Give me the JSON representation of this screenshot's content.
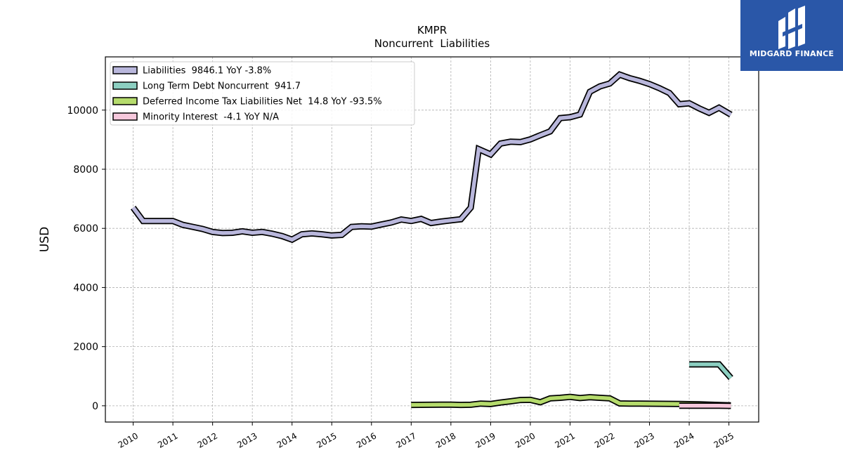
{
  "chart_data": {
    "type": "line",
    "title": "KMPR",
    "subtitle": "Noncurrent  Liabilities",
    "ylabel": "USD",
    "xlabel": "",
    "ylim": [
      -550,
      11800
    ],
    "xlim": [
      2009.3,
      2025.75
    ],
    "yticks": [
      0,
      2000,
      4000,
      6000,
      8000,
      10000
    ],
    "xticks": [
      "2010",
      "2011",
      "2012",
      "2013",
      "2014",
      "2015",
      "2016",
      "2017",
      "2018",
      "2019",
      "2020",
      "2021",
      "2022",
      "2023",
      "2024",
      "2025"
    ],
    "grid": true,
    "legend_position": "top-left",
    "series": [
      {
        "name": "Liabilities",
        "legend": "Liabilities  9846.1 YoY -3.8%",
        "color": "#b9b7dc",
        "points": [
          [
            2010.0,
            6700
          ],
          [
            2010.25,
            6250
          ],
          [
            2010.5,
            6250
          ],
          [
            2010.75,
            6250
          ],
          [
            2011.0,
            6250
          ],
          [
            2011.25,
            6120
          ],
          [
            2011.5,
            6050
          ],
          [
            2011.75,
            5980
          ],
          [
            2012.0,
            5880
          ],
          [
            2012.25,
            5840
          ],
          [
            2012.5,
            5850
          ],
          [
            2012.75,
            5900
          ],
          [
            2013.0,
            5850
          ],
          [
            2013.25,
            5880
          ],
          [
            2013.5,
            5820
          ],
          [
            2013.75,
            5740
          ],
          [
            2014.0,
            5620
          ],
          [
            2014.25,
            5800
          ],
          [
            2014.5,
            5830
          ],
          [
            2014.75,
            5800
          ],
          [
            2015.0,
            5760
          ],
          [
            2015.25,
            5780
          ],
          [
            2015.5,
            6050
          ],
          [
            2015.75,
            6070
          ],
          [
            2016.0,
            6060
          ],
          [
            2016.25,
            6130
          ],
          [
            2016.5,
            6200
          ],
          [
            2016.75,
            6300
          ],
          [
            2017.0,
            6250
          ],
          [
            2017.25,
            6320
          ],
          [
            2017.5,
            6180
          ],
          [
            2017.75,
            6230
          ],
          [
            2018.0,
            6270
          ],
          [
            2018.25,
            6310
          ],
          [
            2018.5,
            6700
          ],
          [
            2018.7,
            8680
          ],
          [
            2019.0,
            8500
          ],
          [
            2019.25,
            8870
          ],
          [
            2019.5,
            8930
          ],
          [
            2019.75,
            8920
          ],
          [
            2020.0,
            9010
          ],
          [
            2020.25,
            9150
          ],
          [
            2020.5,
            9280
          ],
          [
            2020.75,
            9730
          ],
          [
            2021.0,
            9760
          ],
          [
            2021.25,
            9850
          ],
          [
            2021.5,
            10620
          ],
          [
            2021.75,
            10800
          ],
          [
            2022.0,
            10900
          ],
          [
            2022.25,
            11200
          ],
          [
            2022.5,
            11080
          ],
          [
            2022.75,
            10990
          ],
          [
            2023.0,
            10880
          ],
          [
            2023.25,
            10740
          ],
          [
            2023.5,
            10580
          ],
          [
            2023.75,
            10200
          ],
          [
            2024.0,
            10230
          ],
          [
            2024.25,
            10060
          ],
          [
            2024.5,
            9910
          ],
          [
            2024.75,
            10080
          ],
          [
            2025.05,
            9846
          ]
        ]
      },
      {
        "name": "Long Term Debt Noncurrent",
        "legend": "Long Term Debt Noncurrent  941.7",
        "color": "#8ccfc1",
        "points": [
          [
            2024.0,
            1400
          ],
          [
            2024.25,
            1400
          ],
          [
            2024.5,
            1400
          ],
          [
            2024.75,
            1400
          ],
          [
            2025.05,
            942
          ]
        ]
      },
      {
        "name": "Deferred Income Tax Liabilities Net",
        "legend": "Deferred Income Tax Liabilities Net  14.8 YoY -93.5%",
        "color": "#b5db6c",
        "points": [
          [
            2017.0,
            30
          ],
          [
            2017.25,
            32
          ],
          [
            2017.5,
            35
          ],
          [
            2017.75,
            38
          ],
          [
            2018.0,
            40
          ],
          [
            2018.25,
            30
          ],
          [
            2018.5,
            35
          ],
          [
            2018.75,
            75
          ],
          [
            2019.0,
            60
          ],
          [
            2019.25,
            110
          ],
          [
            2019.5,
            150
          ],
          [
            2019.75,
            195
          ],
          [
            2020.0,
            200
          ],
          [
            2020.25,
            120
          ],
          [
            2020.5,
            250
          ],
          [
            2020.75,
            270
          ],
          [
            2021.0,
            300
          ],
          [
            2021.25,
            260
          ],
          [
            2021.5,
            290
          ],
          [
            2021.75,
            270
          ],
          [
            2022.0,
            250
          ],
          [
            2022.25,
            80
          ],
          [
            2022.5,
            75
          ],
          [
            2022.75,
            72
          ],
          [
            2023.0,
            70
          ],
          [
            2023.25,
            68
          ],
          [
            2023.5,
            65
          ],
          [
            2023.75,
            62
          ],
          [
            2024.0,
            55
          ],
          [
            2024.25,
            50
          ],
          [
            2024.5,
            40
          ],
          [
            2024.75,
            25
          ],
          [
            2025.05,
            15
          ]
        ]
      },
      {
        "name": "Minority Interest",
        "legend": "Minority Interest  -4.1 YoY N/A",
        "color": "#f6c8dc",
        "points": [
          [
            2023.75,
            0
          ],
          [
            2024.0,
            0
          ],
          [
            2024.25,
            0
          ],
          [
            2024.5,
            0
          ],
          [
            2024.75,
            0
          ],
          [
            2025.05,
            -4
          ]
        ]
      }
    ]
  },
  "logo": {
    "text": "MIDGARD FINANCE",
    "background": "#2a57a8"
  }
}
